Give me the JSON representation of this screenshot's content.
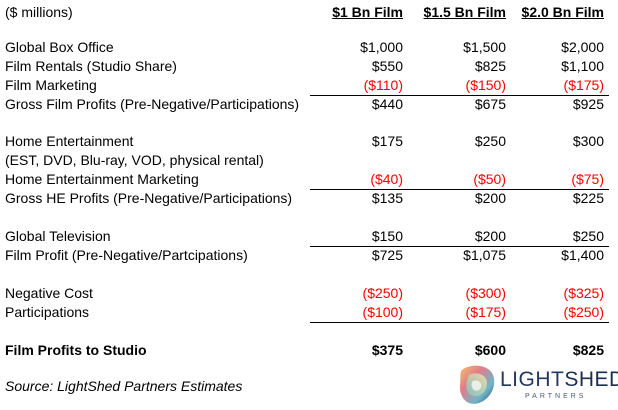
{
  "header": {
    "unit_label": "($ millions)",
    "columns": [
      "$1 Bn Film",
      "$1.5 Bn Film",
      "$2.0 Bn Film"
    ]
  },
  "rows": [
    {
      "label": "Global Box Office",
      "values": [
        "$1,000",
        "$1,500",
        "$2,000"
      ],
      "negative": false
    },
    {
      "label": "Film Rentals (Studio Share)",
      "values": [
        "$550",
        "$825",
        "$1,100"
      ],
      "negative": false
    },
    {
      "label": "Film Marketing",
      "values": [
        "($110)",
        "($150)",
        "($175)"
      ],
      "negative": true
    },
    {
      "label": "Gross Film Profits (Pre-Negative/Participations)",
      "values": [
        "$440",
        "$675",
        "$925"
      ],
      "negative": false
    },
    {
      "label": "Home Entertainment",
      "values": [
        "$175",
        "$250",
        "$300"
      ],
      "negative": false
    },
    {
      "label": "(EST, DVD, Blu-ray, VOD, physical rental)",
      "values": [
        "",
        "",
        ""
      ],
      "negative": false
    },
    {
      "label": "Home Entertainment Marketing",
      "values": [
        "($40)",
        "($50)",
        "($75)"
      ],
      "negative": true
    },
    {
      "label": "Gross HE Profits (Pre-Negative/Participations)",
      "values": [
        "$135",
        "$200",
        "$225"
      ],
      "negative": false
    },
    {
      "label": "Global Television",
      "values": [
        "$150",
        "$200",
        "$250"
      ],
      "negative": false
    },
    {
      "label": "Film Profit (Pre-Negative/Partcipations)",
      "values": [
        "$725",
        "$1,075",
        "$1,400"
      ],
      "negative": false
    },
    {
      "label": "Negative Cost",
      "values": [
        "($250)",
        "($300)",
        "($325)"
      ],
      "negative": true
    },
    {
      "label": "Participations",
      "values": [
        "($100)",
        "($175)",
        "($250)"
      ],
      "negative": true
    },
    {
      "label": "Film Profits to Studio",
      "values": [
        "$375",
        "$600",
        "$825"
      ],
      "negative": false
    }
  ],
  "source": "Source: LightShed Partners Estimates",
  "logo": {
    "light": "LIGHT",
    "shed": "SHED",
    "sub": "PARTNERS"
  },
  "colors": {
    "negative": "#ff0000",
    "text": "#000000",
    "logo_navy": "#233a5e"
  }
}
